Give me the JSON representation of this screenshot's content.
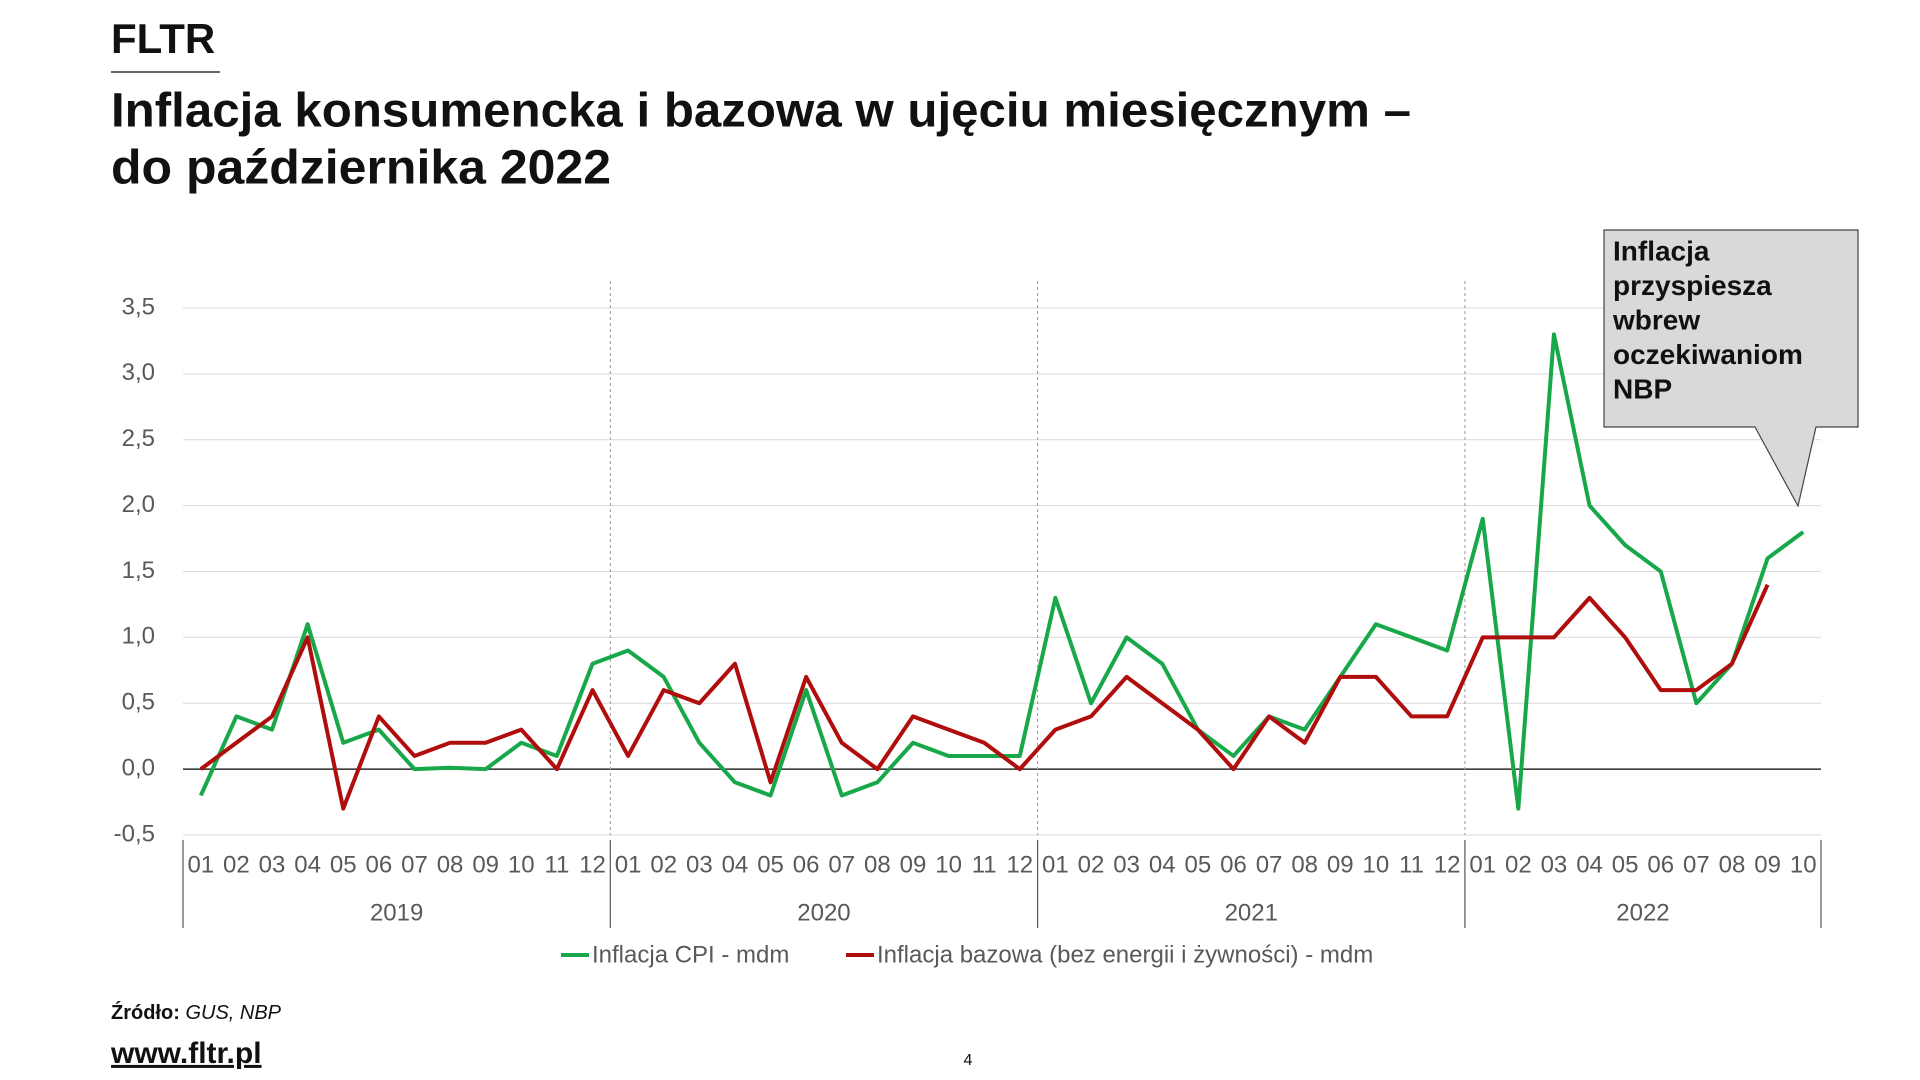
{
  "brand": "FLTR",
  "title": [
    "Inflacja konsumencka i bazowa w ujęciu miesięcznym –",
    "do października 2022"
  ],
  "chart_data": {
    "type": "line",
    "categories": [
      "01",
      "02",
      "03",
      "04",
      "05",
      "06",
      "07",
      "08",
      "09",
      "10",
      "11",
      "12",
      "01",
      "02",
      "03",
      "04",
      "05",
      "06",
      "07",
      "08",
      "09",
      "10",
      "11",
      "12",
      "01",
      "02",
      "03",
      "04",
      "05",
      "06",
      "07",
      "08",
      "09",
      "10",
      "11",
      "12",
      "01",
      "02",
      "03",
      "04",
      "05",
      "06",
      "07",
      "08",
      "09",
      "10"
    ],
    "years": [
      "2019",
      "2020",
      "2021",
      "2022"
    ],
    "series": [
      {
        "name": "Inflacja CPI - mdm",
        "color": "#18a84a",
        "values": [
          -0.2,
          0.4,
          0.3,
          1.1,
          0.2,
          0.3,
          0.0,
          0.01,
          0.0,
          0.2,
          0.1,
          0.8,
          0.9,
          0.7,
          0.2,
          -0.1,
          -0.2,
          0.6,
          -0.2,
          -0.1,
          0.2,
          0.1,
          0.1,
          0.1,
          1.3,
          0.5,
          1.0,
          0.8,
          0.3,
          0.1,
          0.4,
          0.3,
          0.7,
          1.1,
          1.0,
          0.9,
          1.9,
          -0.3,
          3.3,
          2.0,
          1.7,
          1.5,
          0.5,
          0.8,
          1.6,
          1.8
        ]
      },
      {
        "name": "Inflacja bazowa (bez energii i żywności) - mdm",
        "color": "#b00d0d",
        "values": [
          0.0,
          0.2,
          0.4,
          1.0,
          -0.3,
          0.4,
          0.1,
          0.2,
          0.2,
          0.3,
          0.0,
          0.6,
          0.1,
          0.6,
          0.5,
          0.8,
          -0.1,
          0.7,
          0.2,
          0.0,
          0.4,
          0.3,
          0.2,
          0.0,
          0.3,
          0.4,
          0.7,
          0.5,
          0.3,
          0.0,
          0.4,
          0.2,
          0.7,
          0.7,
          0.4,
          0.4,
          1.0,
          1.0,
          1.0,
          1.3,
          1.0,
          0.6,
          0.6,
          0.8,
          1.4,
          null
        ]
      }
    ],
    "ylim": [
      -0.5,
      3.5
    ],
    "yticks": [
      {
        "value": -0.5,
        "label": "-0,5"
      },
      {
        "value": 0,
        "label": "0,0"
      },
      {
        "value": 0.5,
        "label": "0,5"
      },
      {
        "value": 1,
        "label": "1,0"
      },
      {
        "value": 1.5,
        "label": "1,5"
      },
      {
        "value": 2,
        "label": "2,0"
      },
      {
        "value": 2.5,
        "label": "2,5"
      },
      {
        "value": 3,
        "label": "3,0"
      },
      {
        "value": 3.5,
        "label": "3,5"
      }
    ],
    "grid": true,
    "annotation": [
      "Inflacja",
      "przyspiesza",
      "wbrew",
      "oczekiwaniom",
      "NBP"
    ]
  },
  "source": {
    "label": "Źródło:",
    "text": "GUS, NBP"
  },
  "website": "www.fltr.pl",
  "page_number": "4"
}
